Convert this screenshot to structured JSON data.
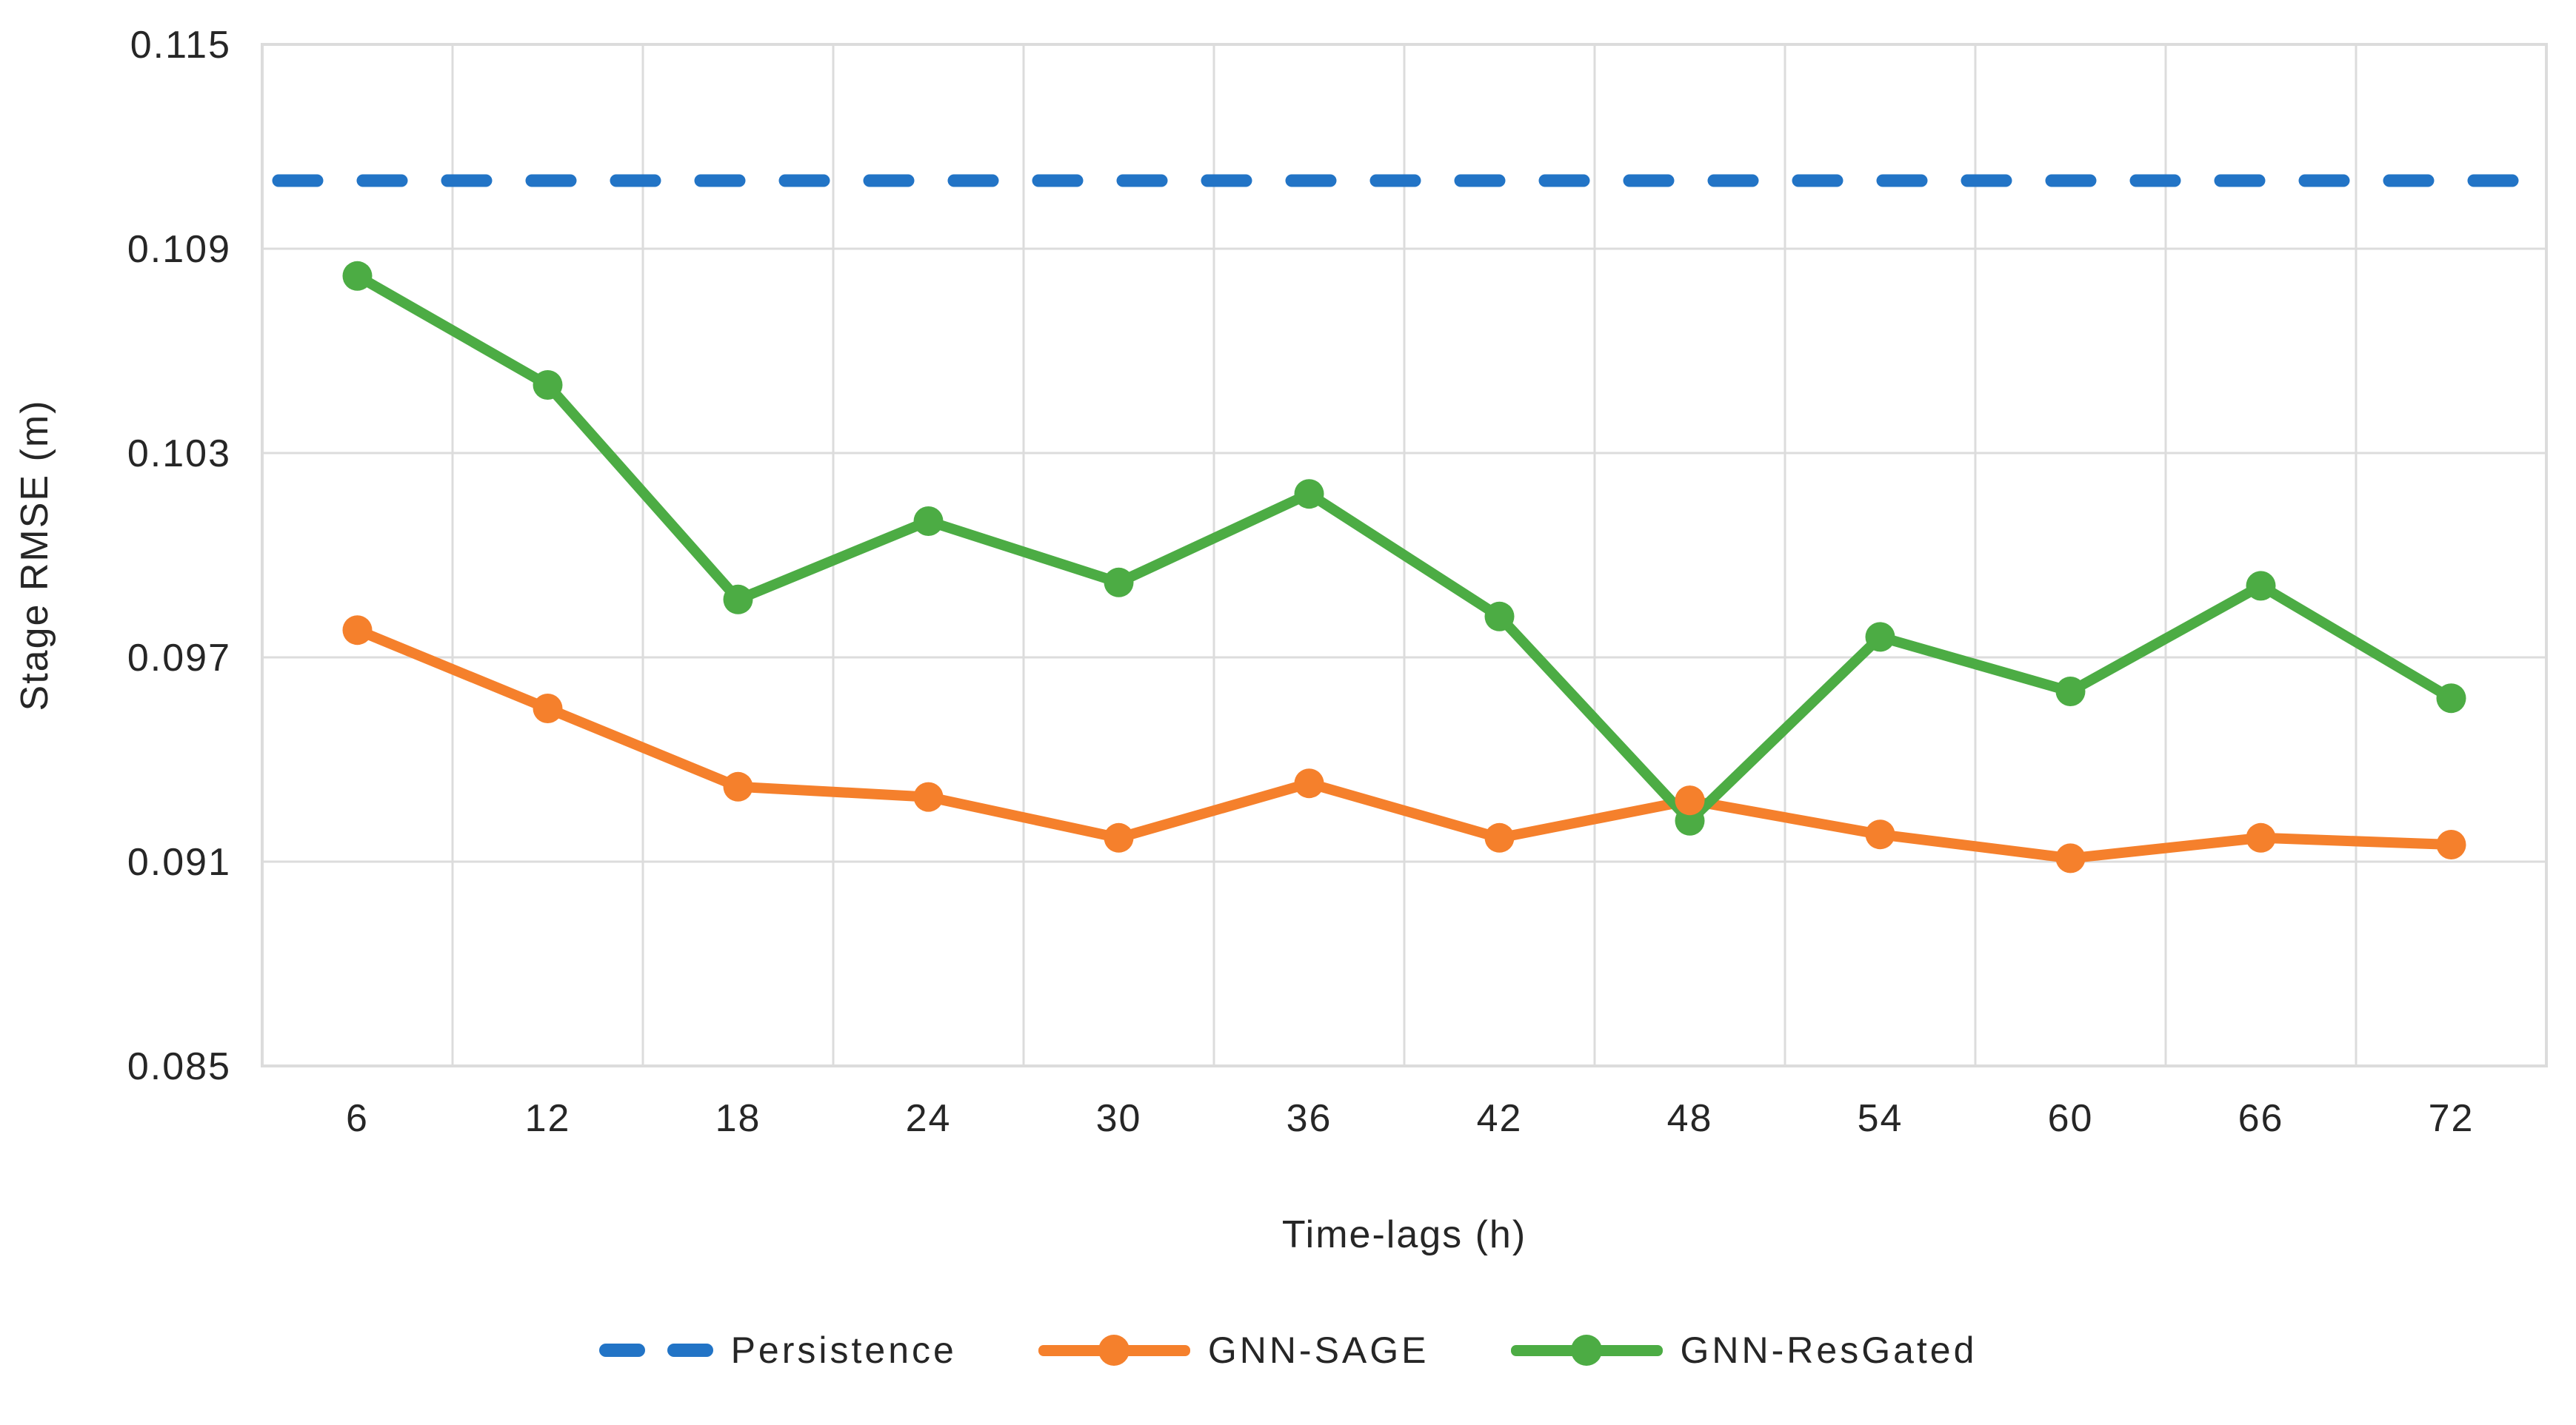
{
  "figure": {
    "background": "#ffffff",
    "text_color": "#262626",
    "gridline_color": "#DCDCDC"
  },
  "chart_data": {
    "type": "line",
    "title": "",
    "xlabel": "Time-lags (h)",
    "ylabel": "Stage RMSE (m)",
    "x": [
      6,
      12,
      18,
      24,
      30,
      36,
      42,
      48,
      54,
      60,
      66,
      72
    ],
    "xtick_labels": [
      "6",
      "12",
      "18",
      "24",
      "30",
      "36",
      "42",
      "48",
      "54",
      "60",
      "66",
      "72"
    ],
    "ytick_labels": [
      "0.115",
      "0.109",
      "0.103",
      "0.097",
      "0.091",
      "0.085"
    ],
    "ylim": [
      0.085,
      0.115
    ],
    "ytick_step": 0.006,
    "grid": true,
    "legend_position": "bottom",
    "series": [
      {
        "name": "Persistence",
        "style": "dashed",
        "marker": "none",
        "color": "#2274C6",
        "constant_value": 0.111,
        "values": [
          0.111,
          0.111,
          0.111,
          0.111,
          0.111,
          0.111,
          0.111,
          0.111,
          0.111,
          0.111,
          0.111,
          0.111
        ]
      },
      {
        "name": "GNN-SAGE",
        "style": "solid",
        "marker": "circle",
        "color": "#F5802C",
        "values": [
          0.0978,
          0.0955,
          0.0932,
          0.0929,
          0.0917,
          0.0933,
          0.0917,
          0.0928,
          0.0918,
          0.0911,
          0.0917,
          0.0915
        ]
      },
      {
        "name": "GNN-ResGated",
        "style": "solid",
        "marker": "circle",
        "color": "#4CAC44",
        "values": [
          0.1082,
          0.105,
          0.0987,
          0.101,
          0.0992,
          0.1018,
          0.0982,
          0.0922,
          0.0976,
          0.096,
          0.0991,
          0.0958
        ]
      }
    ]
  }
}
